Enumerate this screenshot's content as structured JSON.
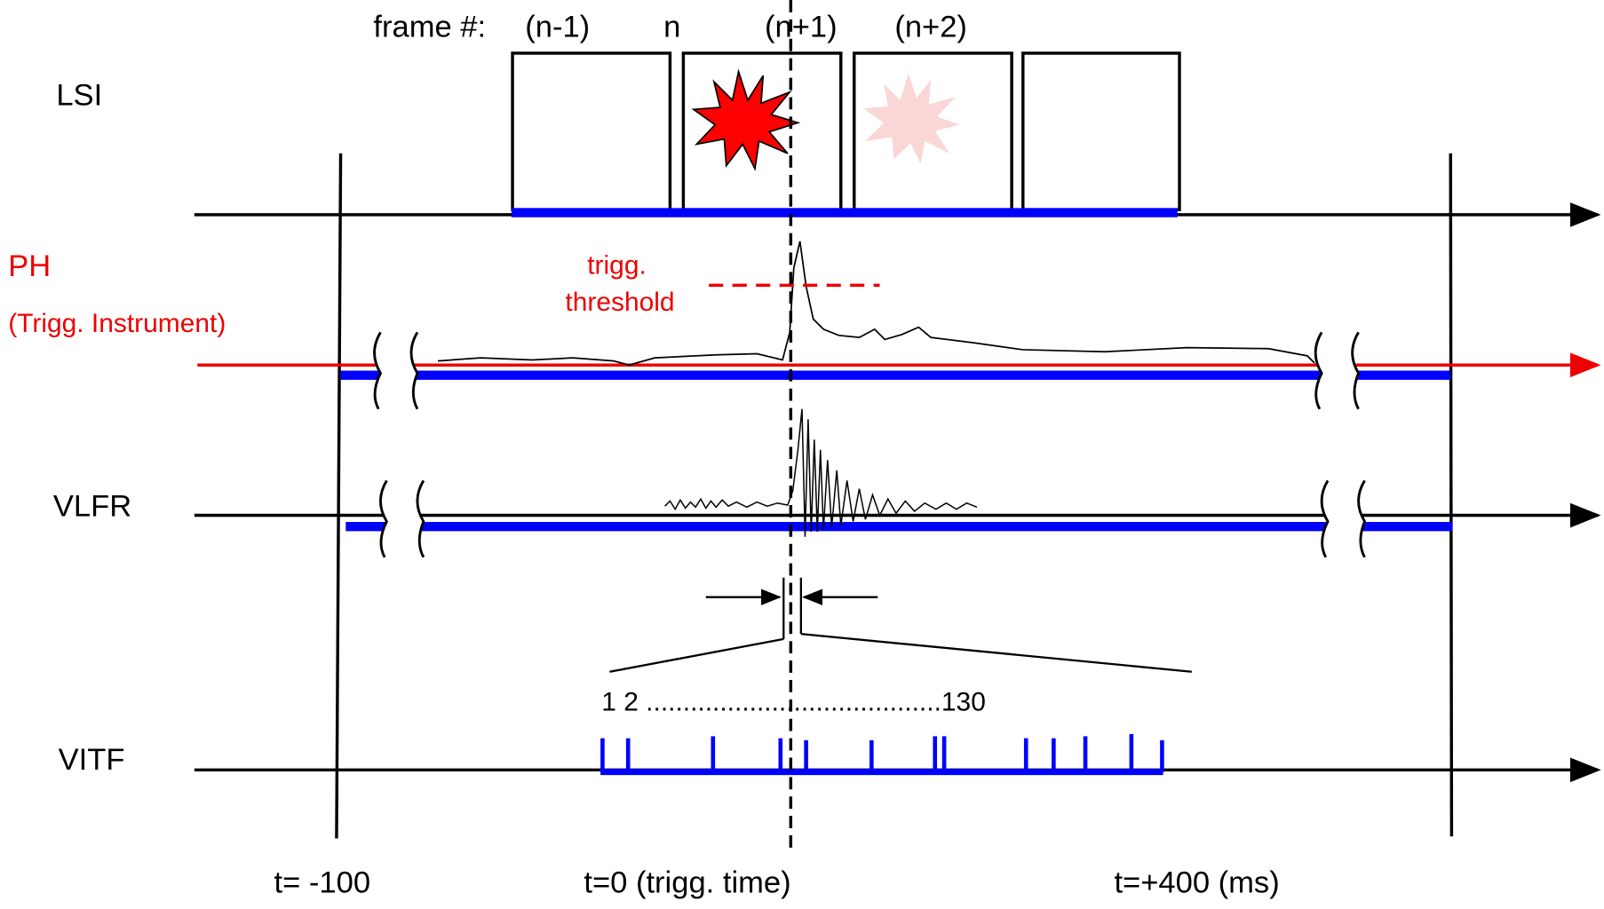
{
  "header": {
    "frame_label": "frame #:",
    "frames": [
      "(n-1)",
      "n",
      "(n+1)",
      "(n+2)"
    ]
  },
  "rows": [
    {
      "label": "LSI"
    },
    {
      "label": "PH",
      "sublabel": "(Trigg. Instrument)"
    },
    {
      "label": "VLFR"
    },
    {
      "label": "VITF"
    }
  ],
  "threshold_label": [
    "trigg.",
    "threshold"
  ],
  "counter": "1 2 ........................................130",
  "time_labels": [
    "t= -100",
    "t=0 (trigg. time)",
    "t=+400 (ms)"
  ]
}
